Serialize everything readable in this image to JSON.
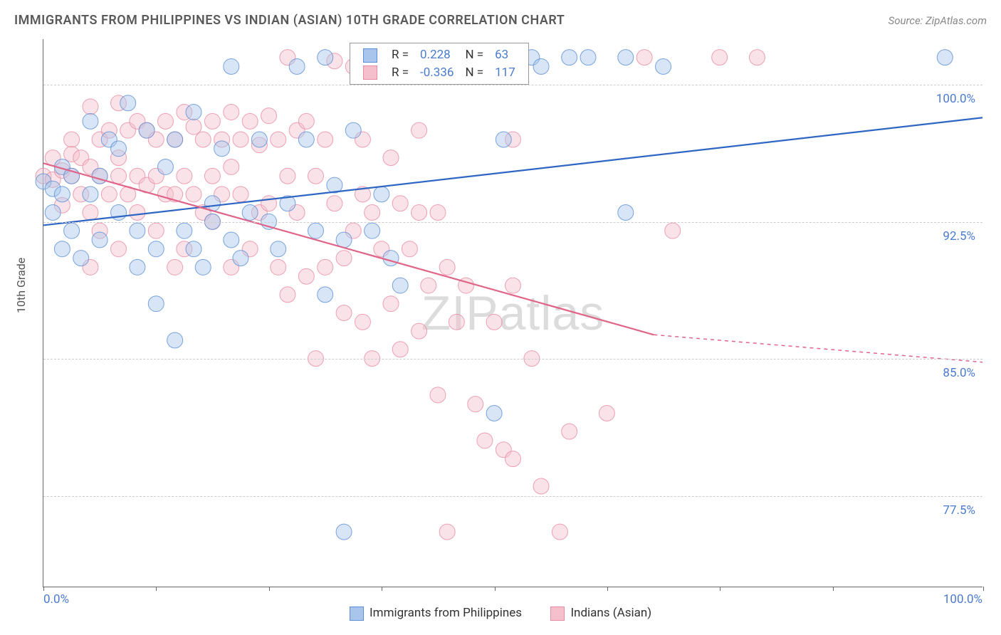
{
  "title": "IMMIGRANTS FROM PHILIPPINES VS INDIAN (ASIAN) 10TH GRADE CORRELATION CHART",
  "source": "Source: ZipAtlas.com",
  "watermark": "ZIPatlas",
  "ylabel": "10th Grade",
  "chart": {
    "type": "scatter",
    "xlim": [
      0,
      100
    ],
    "ylim": [
      72.5,
      102.5
    ],
    "x_tick_positions": [
      0,
      12,
      24,
      36,
      48,
      60,
      72,
      84,
      100
    ],
    "x_tick_labels_first": "0.0%",
    "x_tick_labels_last": "100.0%",
    "y_ticks": [
      77.5,
      85.0,
      92.5,
      100.0
    ],
    "y_tick_labels": [
      "77.5%",
      "85.0%",
      "92.5%",
      "100.0%"
    ],
    "grid_color": "#cccccc",
    "background": "#ffffff",
    "axis_color": "#666666",
    "tick_label_color": "#4a7bd0",
    "title_color": "#5a5a5a",
    "title_fontsize": 18,
    "label_fontsize": 16,
    "tick_fontsize": 17,
    "marker_radius": 11,
    "marker_opacity": 0.45,
    "line_width": 2.2,
    "series": [
      {
        "name": "Immigrants from Philippines",
        "color_fill": "#a9c5ec",
        "color_stroke": "#5a8fd6",
        "line_color": "#2f66c4",
        "R": "0.228",
        "N": "63",
        "regression": {
          "x1": 0,
          "y1": 92.3,
          "x2": 100,
          "y2": 98.2
        },
        "points": [
          [
            0,
            94.7
          ],
          [
            1,
            94.3
          ],
          [
            1,
            93.0
          ],
          [
            2,
            95.5
          ],
          [
            2,
            94.0
          ],
          [
            2,
            91.0
          ],
          [
            3,
            95.0
          ],
          [
            3,
            92.0
          ],
          [
            4,
            90.5
          ],
          [
            5,
            94.0
          ],
          [
            5,
            98.0
          ],
          [
            6,
            95.0
          ],
          [
            6,
            91.5
          ],
          [
            7,
            97.0
          ],
          [
            8,
            96.5
          ],
          [
            8,
            93.0
          ],
          [
            9,
            99.0
          ],
          [
            10,
            92.0
          ],
          [
            10,
            90.0
          ],
          [
            11,
            97.5
          ],
          [
            12,
            91.0
          ],
          [
            12,
            88.0
          ],
          [
            13,
            95.5
          ],
          [
            14,
            86.0
          ],
          [
            14,
            97.0
          ],
          [
            15,
            92.0
          ],
          [
            16,
            98.5
          ],
          [
            16,
            91.0
          ],
          [
            17,
            90.0
          ],
          [
            18,
            93.5
          ],
          [
            18,
            92.5
          ],
          [
            19,
            96.5
          ],
          [
            20,
            101.0
          ],
          [
            20,
            91.5
          ],
          [
            21,
            90.5
          ],
          [
            22,
            93.0
          ],
          [
            23,
            97.0
          ],
          [
            24,
            92.5
          ],
          [
            25,
            91.0
          ],
          [
            26,
            93.5
          ],
          [
            27,
            101.0
          ],
          [
            28,
            97.0
          ],
          [
            29,
            92.0
          ],
          [
            30,
            101.5
          ],
          [
            30,
            88.5
          ],
          [
            31,
            94.5
          ],
          [
            32,
            91.5
          ],
          [
            32,
            75.5
          ],
          [
            33,
            97.5
          ],
          [
            35,
            92.0
          ],
          [
            36,
            94.0
          ],
          [
            37,
            90.5
          ],
          [
            38,
            89.0
          ],
          [
            48,
            82.0
          ],
          [
            52,
            101.5
          ],
          [
            53,
            101.0
          ],
          [
            56,
            101.5
          ],
          [
            58,
            101.5
          ],
          [
            62,
            101.5
          ],
          [
            66,
            101.0
          ],
          [
            96,
            101.5
          ],
          [
            62,
            93.0
          ],
          [
            49,
            97.0
          ]
        ]
      },
      {
        "name": "Indians (Asian)",
        "color_fill": "#f5c0cc",
        "color_stroke": "#e88ba2",
        "line_color": "#e06488",
        "R": "-0.336",
        "N": "117",
        "regression": {
          "x1": 0,
          "y1": 95.7,
          "x2": 65,
          "y2": 86.3
        },
        "regression_dash": {
          "x1": 65,
          "y1": 86.3,
          "x2": 100,
          "y2": 84.8
        },
        "points": [
          [
            0,
            95.0
          ],
          [
            1,
            94.8
          ],
          [
            1,
            96.0
          ],
          [
            2,
            93.4
          ],
          [
            2,
            95.3
          ],
          [
            3,
            97.0
          ],
          [
            3,
            96.2
          ],
          [
            3,
            95.0
          ],
          [
            4,
            96.0
          ],
          [
            4,
            94.0
          ],
          [
            5,
            98.8
          ],
          [
            5,
            95.5
          ],
          [
            5,
            93.0
          ],
          [
            5,
            90.0
          ],
          [
            6,
            97.0
          ],
          [
            6,
            95.0
          ],
          [
            6,
            92.0
          ],
          [
            7,
            97.5
          ],
          [
            7,
            94.0
          ],
          [
            8,
            99.0
          ],
          [
            8,
            96.0
          ],
          [
            8,
            95.0
          ],
          [
            8,
            91.0
          ],
          [
            9,
            97.5
          ],
          [
            9,
            94.0
          ],
          [
            10,
            98.0
          ],
          [
            10,
            95.0
          ],
          [
            10,
            93.0
          ],
          [
            11,
            97.5
          ],
          [
            11,
            94.5
          ],
          [
            12,
            97.0
          ],
          [
            12,
            95.0
          ],
          [
            12,
            92.0
          ],
          [
            13,
            98.0
          ],
          [
            13,
            94.0
          ],
          [
            14,
            97.0
          ],
          [
            14,
            94.0
          ],
          [
            14,
            90.0
          ],
          [
            15,
            98.5
          ],
          [
            15,
            95.0
          ],
          [
            15,
            91.0
          ],
          [
            16,
            97.7
          ],
          [
            16,
            94.0
          ],
          [
            17,
            97.0
          ],
          [
            17,
            93.0
          ],
          [
            18,
            98.0
          ],
          [
            18,
            95.0
          ],
          [
            18,
            92.5
          ],
          [
            19,
            97.0
          ],
          [
            19,
            94.0
          ],
          [
            20,
            98.5
          ],
          [
            20,
            95.5
          ],
          [
            20,
            90.0
          ],
          [
            21,
            97.0
          ],
          [
            21,
            94.0
          ],
          [
            22,
            98.0
          ],
          [
            22,
            91.0
          ],
          [
            23,
            96.7
          ],
          [
            23,
            93.0
          ],
          [
            24,
            98.3
          ],
          [
            24,
            93.5
          ],
          [
            25,
            97.0
          ],
          [
            25,
            90.0
          ],
          [
            26,
            101.5
          ],
          [
            26,
            95.0
          ],
          [
            26,
            88.5
          ],
          [
            27,
            97.5
          ],
          [
            27,
            93.0
          ],
          [
            28,
            98.0
          ],
          [
            28,
            89.5
          ],
          [
            29,
            95.0
          ],
          [
            29,
            85.0
          ],
          [
            30,
            97.0
          ],
          [
            30,
            90.0
          ],
          [
            31,
            101.3
          ],
          [
            31,
            93.5
          ],
          [
            32,
            90.5
          ],
          [
            32,
            87.5
          ],
          [
            33,
            101.0
          ],
          [
            33,
            92.0
          ],
          [
            34,
            94.0
          ],
          [
            34,
            87.0
          ],
          [
            35,
            93.0
          ],
          [
            35,
            85.0
          ],
          [
            36,
            91.0
          ],
          [
            37,
            96.0
          ],
          [
            37,
            88.0
          ],
          [
            38,
            93.5
          ],
          [
            38,
            85.5
          ],
          [
            39,
            91.0
          ],
          [
            40,
            93.0
          ],
          [
            40,
            86.5
          ],
          [
            41,
            89.0
          ],
          [
            42,
            93.0
          ],
          [
            42,
            83.0
          ],
          [
            43,
            90.0
          ],
          [
            43,
            75.5
          ],
          [
            44,
            87.0
          ],
          [
            45,
            101.0
          ],
          [
            45,
            89.0
          ],
          [
            46,
            82.5
          ],
          [
            47,
            80.5
          ],
          [
            48,
            87.0
          ],
          [
            49,
            80.0
          ],
          [
            50,
            89.0
          ],
          [
            50,
            79.5
          ],
          [
            52,
            85.0
          ],
          [
            53,
            78.0
          ],
          [
            55,
            75.5
          ],
          [
            56,
            81.0
          ],
          [
            60,
            82.0
          ],
          [
            64,
            101.5
          ],
          [
            67,
            92.0
          ],
          [
            72,
            101.5
          ],
          [
            76,
            101.5
          ],
          [
            50,
            97.0
          ],
          [
            40,
            97.5
          ],
          [
            34,
            97.0
          ]
        ]
      }
    ]
  },
  "legend_bottom": {
    "item1": "Immigrants from Philippines",
    "item2": "Indians (Asian)"
  }
}
